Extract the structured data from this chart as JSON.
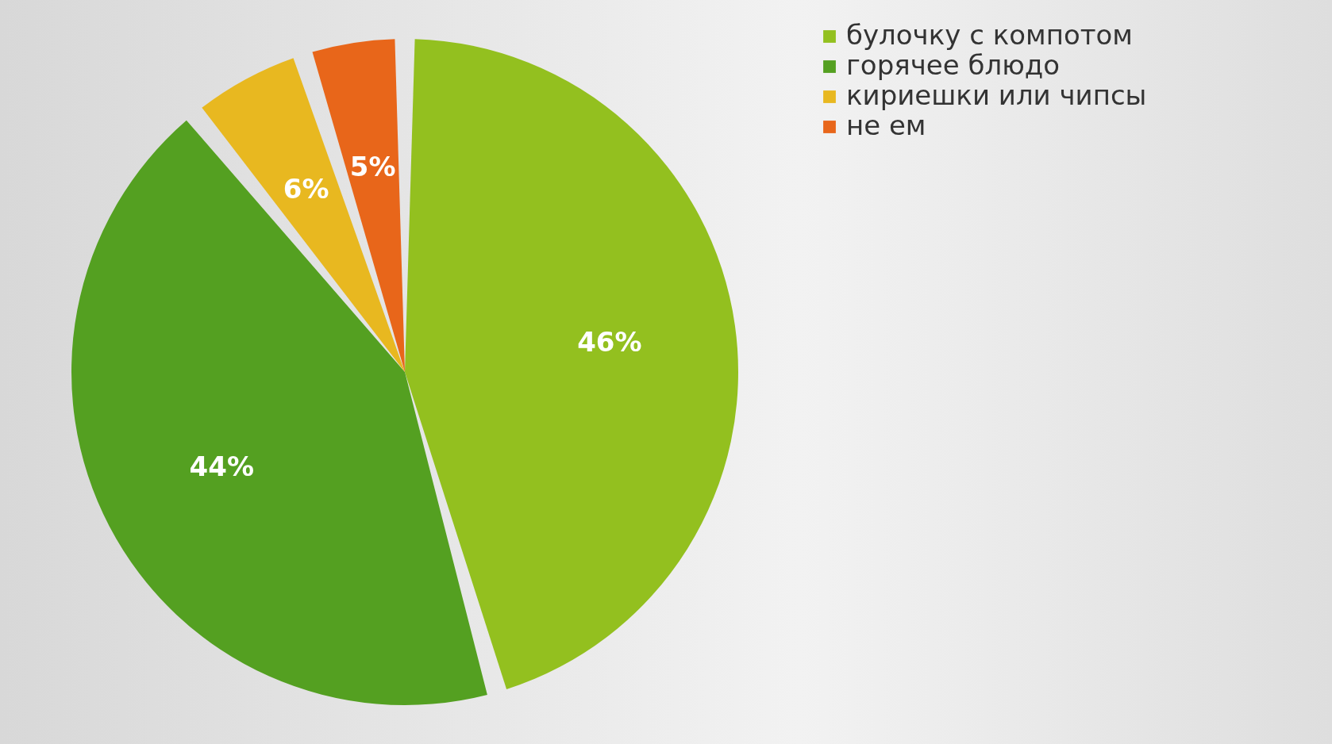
{
  "chart_data": {
    "type": "pie",
    "categories": [
      "булочку с компотом",
      "горячее блюдо",
      "кириешки или чипсы",
      "не ем"
    ],
    "values": [
      46,
      44,
      6,
      5
    ],
    "colors": [
      "#93c01f",
      "#54a021",
      "#e8b820",
      "#e8661a"
    ],
    "value_labels": [
      "46%",
      "44%",
      "6%",
      "5%"
    ],
    "legend": "right"
  }
}
